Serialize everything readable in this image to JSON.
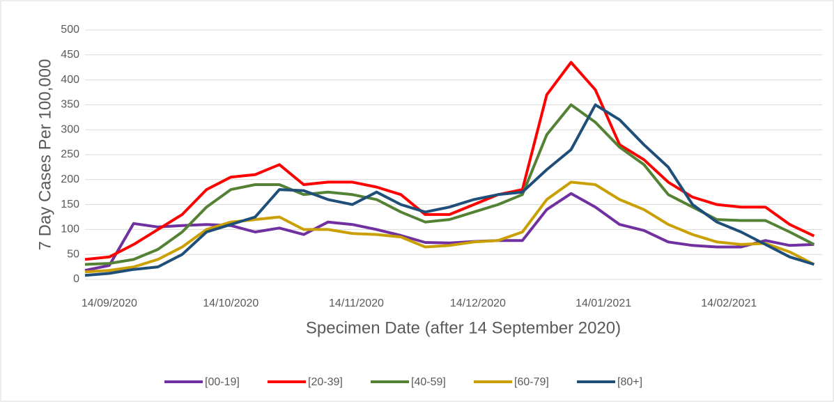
{
  "chart_data": {
    "type": "line",
    "x_label": "Specimen Date (after 14 September 2020)",
    "y_label": "7 Day Cases Per 100,000",
    "x": [
      "2020-09-08",
      "2020-09-14",
      "2020-09-20",
      "2020-09-26",
      "2020-10-02",
      "2020-10-08",
      "2020-10-14",
      "2020-10-20",
      "2020-10-26",
      "2020-11-01",
      "2020-11-07",
      "2020-11-13",
      "2020-11-19",
      "2020-11-25",
      "2020-12-01",
      "2020-12-07",
      "2020-12-13",
      "2020-12-19",
      "2020-12-25",
      "2020-12-31",
      "2021-01-06",
      "2021-01-12",
      "2021-01-18",
      "2021-01-24",
      "2021-01-30",
      "2021-02-05",
      "2021-02-11",
      "2021-02-17",
      "2021-02-23",
      "2021-03-01",
      "2021-03-07"
    ],
    "series": [
      {
        "name": "[00-19]",
        "color": "#7030a0",
        "values": [
          18,
          28,
          112,
          105,
          108,
          110,
          108,
          95,
          103,
          90,
          115,
          110,
          100,
          88,
          74,
          73,
          76,
          78,
          78,
          140,
          172,
          145,
          110,
          98,
          75,
          68,
          65,
          65,
          78,
          68,
          70
        ]
      },
      {
        "name": "[20-39]",
        "color": "#ff0000",
        "values": [
          40,
          45,
          70,
          100,
          130,
          180,
          205,
          210,
          230,
          190,
          195,
          195,
          185,
          170,
          130,
          130,
          150,
          170,
          180,
          370,
          435,
          380,
          270,
          240,
          195,
          165,
          150,
          145,
          145,
          110,
          87
        ]
      },
      {
        "name": "[40-59]",
        "color": "#548235",
        "values": [
          30,
          32,
          40,
          60,
          95,
          145,
          180,
          190,
          190,
          170,
          175,
          170,
          160,
          135,
          115,
          120,
          135,
          150,
          170,
          290,
          350,
          315,
          265,
          230,
          170,
          145,
          120,
          118,
          118,
          95,
          70
        ]
      },
      {
        "name": "[60-79]",
        "color": "#c9a000",
        "values": [
          15,
          18,
          25,
          40,
          65,
          100,
          115,
          120,
          125,
          100,
          100,
          92,
          90,
          85,
          65,
          68,
          75,
          78,
          95,
          160,
          195,
          190,
          160,
          140,
          110,
          90,
          75,
          70,
          72,
          55,
          30
        ]
      },
      {
        "name": "[80+]",
        "color": "#1f4e79",
        "values": [
          8,
          12,
          20,
          25,
          50,
          95,
          110,
          125,
          180,
          178,
          160,
          150,
          175,
          150,
          135,
          145,
          160,
          170,
          175,
          220,
          260,
          350,
          320,
          270,
          225,
          150,
          115,
          95,
          70,
          45,
          30
        ]
      }
    ],
    "xlim": [
      "2020-09-08",
      "2021-03-09"
    ],
    "xticks": [
      {
        "value": "2020-09-14",
        "label": "14/09/2020"
      },
      {
        "value": "2020-10-14",
        "label": "14/10/2020"
      },
      {
        "value": "2020-11-14",
        "label": "14/11/2020"
      },
      {
        "value": "2020-12-14",
        "label": "14/12/2020"
      },
      {
        "value": "2021-01-14",
        "label": "14/01/2021"
      },
      {
        "value": "2021-02-14",
        "label": "14/02/2021"
      }
    ],
    "ylim": [
      0,
      500
    ],
    "yticks": [
      0,
      50,
      100,
      150,
      200,
      250,
      300,
      350,
      400,
      450,
      500
    ],
    "grid": true,
    "legend": "bottom"
  }
}
